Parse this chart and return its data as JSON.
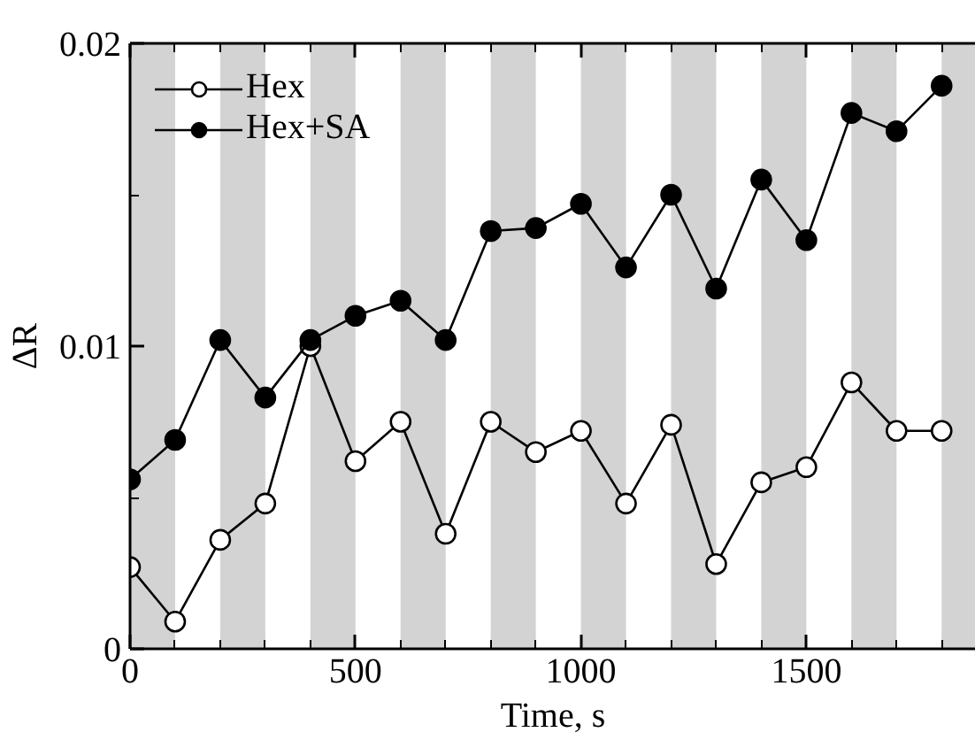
{
  "chart_data": {
    "type": "line",
    "xlabel": "Time, s",
    "ylabel": "ΔR",
    "x": [
      0,
      100,
      200,
      300,
      400,
      500,
      600,
      700,
      800,
      900,
      1000,
      1100,
      1200,
      1300,
      1400,
      1500,
      1600,
      1700,
      1800
    ],
    "series": [
      {
        "name": "Hex",
        "color": "#ffffff",
        "values": [
          0.0027,
          0.0009,
          0.0036,
          0.0048,
          0.01,
          0.0062,
          0.0075,
          0.0038,
          0.0075,
          0.0065,
          0.0072,
          0.0048,
          0.0074,
          0.0028,
          0.0055,
          0.006,
          0.0088,
          0.0072,
          0.0072
        ]
      },
      {
        "name": "Hex+SA",
        "color": "#000000",
        "values": [
          0.0056,
          0.0069,
          0.0102,
          0.0083,
          0.0102,
          0.011,
          0.0115,
          0.0102,
          0.0138,
          0.0139,
          0.0147,
          0.0126,
          0.015,
          0.0119,
          0.0155,
          0.0135,
          0.0177,
          0.0171,
          0.0186
        ]
      }
    ],
    "xlim": [
      0,
      1876
    ],
    "ylim": [
      0,
      0.02
    ],
    "xticks": [
      0,
      {
        "value": 100,
        "label": null
      },
      {
        "value": 200,
        "label": null
      },
      {
        "value": 300,
        "label": null
      },
      {
        "value": 400,
        "label": null
      },
      500,
      {
        "value": 600,
        "label": null
      },
      {
        "value": 700,
        "label": null
      },
      {
        "value": 800,
        "label": null
      },
      {
        "value": 900,
        "label": null
      },
      1000,
      {
        "value": 1100,
        "label": null
      },
      {
        "value": 1200,
        "label": null
      },
      {
        "value": 1300,
        "label": null
      },
      {
        "value": 1400,
        "label": null
      },
      1500,
      {
        "value": 1600,
        "label": null
      },
      {
        "value": 1700,
        "label": null
      },
      {
        "value": 1800,
        "label": null
      }
    ],
    "yticks": [
      0,
      {
        "value": 0.005,
        "label": null
      },
      0.01,
      {
        "value": 0.015,
        "label": null
      },
      0.02
    ],
    "bands": [
      {
        "axis": "x",
        "from": 0,
        "to": 100,
        "color": "#d3d3d3"
      },
      {
        "axis": "x",
        "from": 200,
        "to": 300,
        "color": "#d3d3d3"
      },
      {
        "axis": "x",
        "from": 400,
        "to": 500,
        "color": "#d3d3d3"
      },
      {
        "axis": "x",
        "from": 600,
        "to": 700,
        "color": "#d3d3d3"
      },
      {
        "axis": "x",
        "from": 800,
        "to": 900,
        "color": "#d3d3d3"
      },
      {
        "axis": "x",
        "from": 1000,
        "to": 1100,
        "color": "#d3d3d3"
      },
      {
        "axis": "x",
        "from": 1200,
        "to": 1300,
        "color": "#d3d3d3"
      },
      {
        "axis": "x",
        "from": 1400,
        "to": 1500,
        "color": "#d3d3d3"
      },
      {
        "axis": "x",
        "from": 1600,
        "to": 1700,
        "color": "#d3d3d3"
      },
      {
        "axis": "x",
        "from": 1800,
        "to": 1876,
        "color": "#d3d3d3"
      }
    ],
    "grid": false,
    "legend": "top left",
    "line_style": "solid",
    "marker": "circle"
  }
}
